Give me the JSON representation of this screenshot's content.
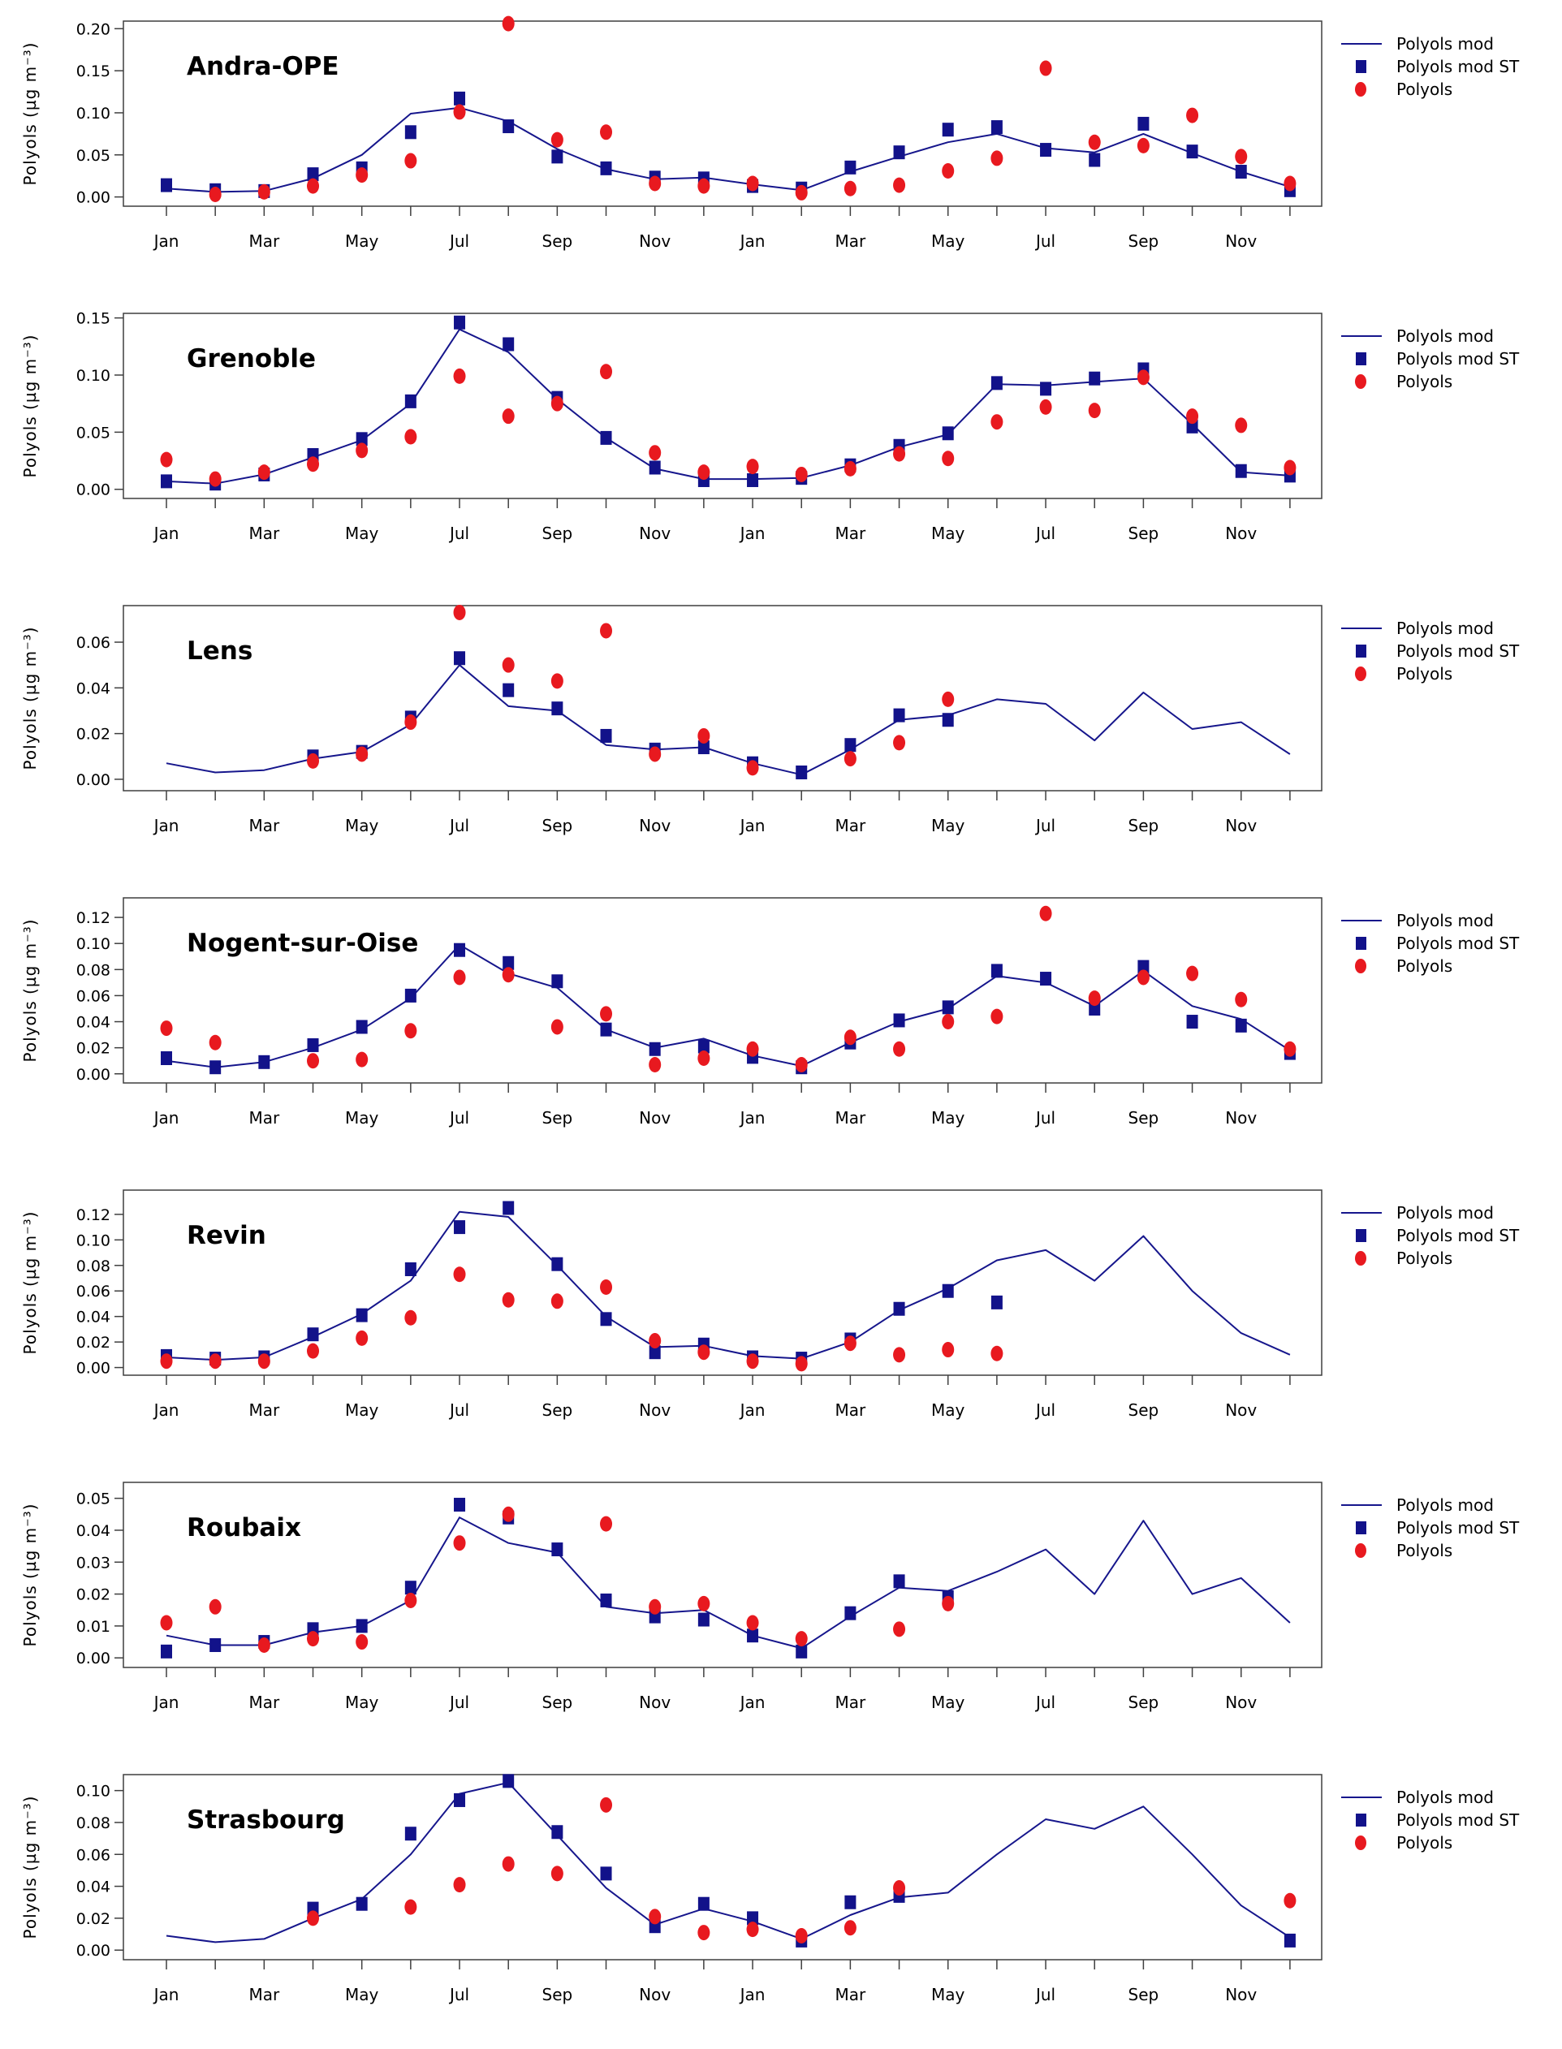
{
  "page": {
    "background": "#ffffff"
  },
  "colors": {
    "model_line": "#16168c",
    "model_st_marker": "#12128a",
    "obs_marker": "#e8191f",
    "frame": "#3f3f3f",
    "text": "#000000"
  },
  "legend": {
    "items": [
      {
        "label": "Polyols mod",
        "marker": "line"
      },
      {
        "label": "Polyols mod ST",
        "marker": "square"
      },
      {
        "label": "Polyols",
        "marker": "dot"
      }
    ]
  },
  "chart_data": [
    {
      "type": "line",
      "title": "Andra-OPE",
      "slug": "andra-ope",
      "ylabel": "Polyols (µg m⁻³)",
      "x_month_labels": [
        "Jan",
        "Mar",
        "May",
        "Jul",
        "Sep",
        "Nov",
        "Jan",
        "Mar",
        "May",
        "Jul",
        "Sep",
        "Nov"
      ],
      "months_per_axis": 24,
      "ylim": [
        -0.011,
        0.209
      ],
      "yticks": [
        0,
        0.05,
        0.1,
        0.15,
        0.2
      ],
      "ytick_labels": [
        "0.00",
        "0.05",
        "0.10",
        "0.15",
        "0.20"
      ],
      "grid": false,
      "legend_position": "right-top",
      "series": [
        {
          "name": "Polyols mod",
          "type": "line",
          "values": [
            0.01,
            0.006,
            0.007,
            0.022,
            0.05,
            0.099,
            0.106,
            0.09,
            0.057,
            0.033,
            0.021,
            0.023,
            0.015,
            0.008,
            0.03,
            0.048,
            0.065,
            0.075,
            0.058,
            0.053,
            0.075,
            0.052,
            0.03,
            0.012
          ]
        },
        {
          "name": "Polyols mod ST",
          "type": "square",
          "values": [
            0.014,
            0.008,
            0.007,
            0.027,
            0.034,
            0.077,
            0.117,
            0.084,
            0.048,
            0.034,
            0.023,
            0.022,
            0.013,
            0.01,
            0.035,
            0.053,
            0.08,
            0.083,
            0.056,
            0.044,
            0.087,
            0.054,
            0.03,
            0.008
          ]
        },
        {
          "name": "Polyols",
          "type": "dot",
          "values": [
            null,
            0.003,
            0.006,
            0.013,
            0.026,
            0.043,
            0.101,
            0.206,
            0.068,
            0.077,
            0.016,
            0.013,
            0.016,
            0.005,
            0.01,
            0.014,
            0.031,
            0.046,
            0.153,
            0.065,
            0.061,
            0.097,
            0.048,
            0.016
          ]
        }
      ]
    },
    {
      "type": "line",
      "title": "Grenoble",
      "slug": "grenoble",
      "ylabel": "Polyols (µg m⁻³)",
      "x_month_labels": [
        "Jan",
        "Mar",
        "May",
        "Jul",
        "Sep",
        "Nov",
        "Jan",
        "Mar",
        "May",
        "Jul",
        "Sep",
        "Nov"
      ],
      "months_per_axis": 24,
      "ylim": [
        -0.008,
        0.154
      ],
      "yticks": [
        0,
        0.05,
        0.1,
        0.15
      ],
      "ytick_labels": [
        "0.00",
        "0.05",
        "0.10",
        "0.15"
      ],
      "grid": false,
      "legend_position": "right-top",
      "series": [
        {
          "name": "Polyols mod",
          "type": "line",
          "values": [
            0.007,
            0.005,
            0.013,
            0.028,
            0.043,
            0.075,
            0.14,
            0.12,
            0.079,
            0.045,
            0.018,
            0.009,
            0.009,
            0.01,
            0.021,
            0.037,
            0.048,
            0.092,
            0.091,
            0.094,
            0.097,
            0.057,
            0.015,
            0.012
          ]
        },
        {
          "name": "Polyols mod ST",
          "type": "square",
          "values": [
            0.007,
            0.005,
            0.013,
            0.03,
            0.044,
            0.077,
            0.146,
            0.127,
            0.08,
            0.045,
            0.019,
            0.008,
            0.008,
            0.01,
            0.021,
            0.038,
            0.049,
            0.093,
            0.088,
            0.097,
            0.105,
            0.055,
            0.016,
            0.012
          ]
        },
        {
          "name": "Polyols",
          "type": "dot",
          "values": [
            0.026,
            0.009,
            0.015,
            0.022,
            0.034,
            0.046,
            0.099,
            0.064,
            0.075,
            0.103,
            0.032,
            0.015,
            0.02,
            0.013,
            0.018,
            0.031,
            0.027,
            0.059,
            0.072,
            0.069,
            0.098,
            0.064,
            0.056,
            0.019
          ]
        }
      ]
    },
    {
      "type": "line",
      "title": "Lens",
      "slug": "lens",
      "ylabel": "Polyols (µg m⁻³)",
      "x_month_labels": [
        "Jan",
        "Mar",
        "May",
        "Jul",
        "Sep",
        "Nov",
        "Jan",
        "Mar",
        "May",
        "Jul",
        "Sep",
        "Nov"
      ],
      "months_per_axis": 24,
      "ylim": [
        -0.005,
        0.076
      ],
      "yticks": [
        0,
        0.02,
        0.04,
        0.06
      ],
      "ytick_labels": [
        "0.00",
        "0.02",
        "0.04",
        "0.06"
      ],
      "grid": false,
      "legend_position": "right-top",
      "series": [
        {
          "name": "Polyols mod",
          "type": "line",
          "values": [
            0.007,
            0.003,
            0.004,
            0.009,
            0.012,
            0.024,
            0.05,
            0.032,
            0.03,
            0.015,
            0.013,
            0.014,
            0.007,
            0.002,
            0.013,
            0.026,
            0.028,
            0.035,
            0.033,
            0.017,
            0.038,
            0.022,
            0.025,
            0.011
          ]
        },
        {
          "name": "Polyols mod ST",
          "type": "square",
          "values": [
            null,
            null,
            null,
            0.01,
            0.012,
            0.027,
            0.053,
            0.039,
            0.031,
            0.019,
            0.013,
            0.014,
            0.007,
            0.003,
            0.015,
            0.028,
            0.026,
            null,
            null,
            null,
            null,
            null,
            null,
            null
          ]
        },
        {
          "name": "Polyols",
          "type": "dot",
          "values": [
            null,
            null,
            null,
            0.008,
            0.011,
            0.025,
            0.073,
            0.05,
            0.043,
            0.065,
            0.011,
            0.019,
            0.005,
            null,
            0.009,
            0.016,
            0.035,
            null,
            null,
            null,
            null,
            null,
            null,
            null
          ]
        }
      ]
    },
    {
      "type": "line",
      "title": "Nogent-sur-Oise",
      "slug": "nogent-sur-oise",
      "ylabel": "Polyols (µg m⁻³)",
      "x_month_labels": [
        "Jan",
        "Mar",
        "May",
        "Jul",
        "Sep",
        "Nov",
        "Jan",
        "Mar",
        "May",
        "Jul",
        "Sep",
        "Nov"
      ],
      "months_per_axis": 24,
      "ylim": [
        -0.007,
        0.135
      ],
      "yticks": [
        0,
        0.02,
        0.04,
        0.06,
        0.08,
        0.1,
        0.12
      ],
      "ytick_labels": [
        "0.00",
        "0.02",
        "0.04",
        "0.06",
        "0.08",
        "0.10",
        "0.12"
      ],
      "grid": false,
      "legend_position": "right-top",
      "series": [
        {
          "name": "Polyols mod",
          "type": "line",
          "values": [
            0.01,
            0.005,
            0.009,
            0.02,
            0.034,
            0.058,
            0.099,
            0.077,
            0.066,
            0.034,
            0.02,
            0.027,
            0.014,
            0.006,
            0.024,
            0.04,
            0.05,
            0.075,
            0.07,
            0.052,
            0.079,
            0.052,
            0.042,
            0.018
          ]
        },
        {
          "name": "Polyols mod ST",
          "type": "square",
          "values": [
            0.012,
            0.005,
            0.009,
            0.022,
            0.036,
            0.06,
            0.095,
            0.085,
            0.071,
            0.034,
            0.019,
            0.021,
            0.013,
            0.005,
            0.024,
            0.041,
            0.051,
            0.079,
            0.073,
            0.05,
            0.082,
            0.04,
            0.037,
            0.016
          ]
        },
        {
          "name": "Polyols",
          "type": "dot",
          "values": [
            0.035,
            0.024,
            null,
            0.01,
            0.011,
            0.033,
            0.074,
            0.076,
            0.036,
            0.046,
            0.007,
            0.012,
            0.019,
            0.007,
            0.028,
            0.019,
            0.04,
            0.044,
            0.123,
            0.058,
            0.074,
            0.077,
            0.057,
            0.019
          ]
        }
      ]
    },
    {
      "type": "line",
      "title": "Revin",
      "slug": "revin",
      "ylabel": "Polyols (µg m⁻³)",
      "x_month_labels": [
        "Jan",
        "Mar",
        "May",
        "Jul",
        "Sep",
        "Nov",
        "Jan",
        "Mar",
        "May",
        "Jul",
        "Sep",
        "Nov"
      ],
      "months_per_axis": 24,
      "ylim": [
        -0.006,
        0.139
      ],
      "yticks": [
        0,
        0.02,
        0.04,
        0.06,
        0.08,
        0.1,
        0.12
      ],
      "ytick_labels": [
        "0.00",
        "0.02",
        "0.04",
        "0.06",
        "0.08",
        "0.10",
        "0.12"
      ],
      "grid": false,
      "legend_position": "right-top",
      "series": [
        {
          "name": "Polyols mod",
          "type": "line",
          "values": [
            0.008,
            0.006,
            0.008,
            0.024,
            0.042,
            0.068,
            0.122,
            0.118,
            0.08,
            0.04,
            0.016,
            0.017,
            0.009,
            0.007,
            0.02,
            0.045,
            0.062,
            0.084,
            0.092,
            0.068,
            0.103,
            0.06,
            0.027,
            0.01
          ]
        },
        {
          "name": "Polyols mod ST",
          "type": "square",
          "values": [
            0.009,
            0.007,
            0.008,
            0.026,
            0.041,
            0.077,
            0.11,
            0.125,
            0.081,
            0.038,
            0.012,
            0.018,
            0.008,
            0.007,
            0.022,
            0.046,
            0.06,
            0.051,
            null,
            null,
            null,
            null,
            null,
            null
          ]
        },
        {
          "name": "Polyols",
          "type": "dot",
          "values": [
            0.005,
            0.005,
            0.005,
            0.013,
            0.023,
            0.039,
            0.073,
            0.053,
            0.052,
            0.063,
            0.021,
            0.012,
            0.005,
            0.003,
            0.019,
            0.01,
            0.014,
            0.011,
            null,
            null,
            null,
            null,
            null,
            null
          ]
        }
      ]
    },
    {
      "type": "line",
      "title": "Roubaix",
      "slug": "roubaix",
      "ylabel": "Polyols (µg m⁻³)",
      "x_month_labels": [
        "Jan",
        "Mar",
        "May",
        "Jul",
        "Sep",
        "Nov",
        "Jan",
        "Mar",
        "May",
        "Jul",
        "Sep",
        "Nov"
      ],
      "months_per_axis": 24,
      "ylim": [
        -0.003,
        0.055
      ],
      "yticks": [
        0,
        0.01,
        0.02,
        0.03,
        0.04,
        0.05
      ],
      "ytick_labels": [
        "0.00",
        "0.01",
        "0.02",
        "0.03",
        "0.04",
        "0.05"
      ],
      "grid": false,
      "legend_position": "right-top",
      "series": [
        {
          "name": "Polyols mod",
          "type": "line",
          "values": [
            0.007,
            0.004,
            0.004,
            0.008,
            0.01,
            0.018,
            0.044,
            0.036,
            0.033,
            0.016,
            0.014,
            0.015,
            0.007,
            0.003,
            0.013,
            0.022,
            0.021,
            0.027,
            0.034,
            0.02,
            0.043,
            0.02,
            0.025,
            0.011
          ]
        },
        {
          "name": "Polyols mod ST",
          "type": "square",
          "values": [
            0.002,
            0.004,
            0.005,
            0.009,
            0.01,
            0.022,
            0.048,
            0.044,
            0.034,
            0.018,
            0.013,
            0.012,
            0.007,
            0.002,
            0.014,
            0.024,
            0.019,
            null,
            null,
            null,
            null,
            null,
            null,
            null
          ]
        },
        {
          "name": "Polyols",
          "type": "dot",
          "values": [
            0.011,
            0.016,
            0.004,
            0.006,
            0.005,
            0.018,
            0.036,
            0.045,
            null,
            0.042,
            0.016,
            0.017,
            0.011,
            0.006,
            null,
            0.009,
            0.017,
            null,
            null,
            null,
            null,
            null,
            null,
            null
          ]
        }
      ]
    },
    {
      "type": "line",
      "title": "Strasbourg",
      "slug": "strasbourg",
      "ylabel": "Polyols (µg m⁻³)",
      "x_month_labels": [
        "Jan",
        "Mar",
        "May",
        "Jul",
        "Sep",
        "Nov",
        "Jan",
        "Mar",
        "May",
        "Jul",
        "Sep",
        "Nov"
      ],
      "months_per_axis": 24,
      "ylim": [
        -0.006,
        0.11
      ],
      "yticks": [
        0,
        0.02,
        0.04,
        0.06,
        0.08,
        0.1
      ],
      "ytick_labels": [
        "0.00",
        "0.02",
        "0.04",
        "0.06",
        "0.08",
        "0.10"
      ],
      "grid": false,
      "legend_position": "right-top",
      "series": [
        {
          "name": "Polyols mod",
          "type": "line",
          "values": [
            0.009,
            0.005,
            0.007,
            0.02,
            0.032,
            0.06,
            0.098,
            0.105,
            0.072,
            0.039,
            0.016,
            0.026,
            0.018,
            0.007,
            0.022,
            0.033,
            0.036,
            0.06,
            0.082,
            0.076,
            0.09,
            0.06,
            0.028,
            0.008
          ]
        },
        {
          "name": "Polyols mod ST",
          "type": "square",
          "values": [
            null,
            null,
            null,
            0.026,
            0.029,
            0.073,
            0.094,
            0.106,
            0.074,
            0.048,
            0.015,
            0.029,
            0.02,
            0.006,
            0.03,
            0.034,
            null,
            null,
            null,
            null,
            null,
            null,
            null,
            0.006
          ]
        },
        {
          "name": "Polyols",
          "type": "dot",
          "values": [
            null,
            null,
            null,
            0.02,
            null,
            0.027,
            0.041,
            0.054,
            0.048,
            0.091,
            0.021,
            0.011,
            0.013,
            0.009,
            0.014,
            0.039,
            null,
            null,
            null,
            null,
            null,
            null,
            null,
            0.031
          ]
        }
      ]
    }
  ]
}
